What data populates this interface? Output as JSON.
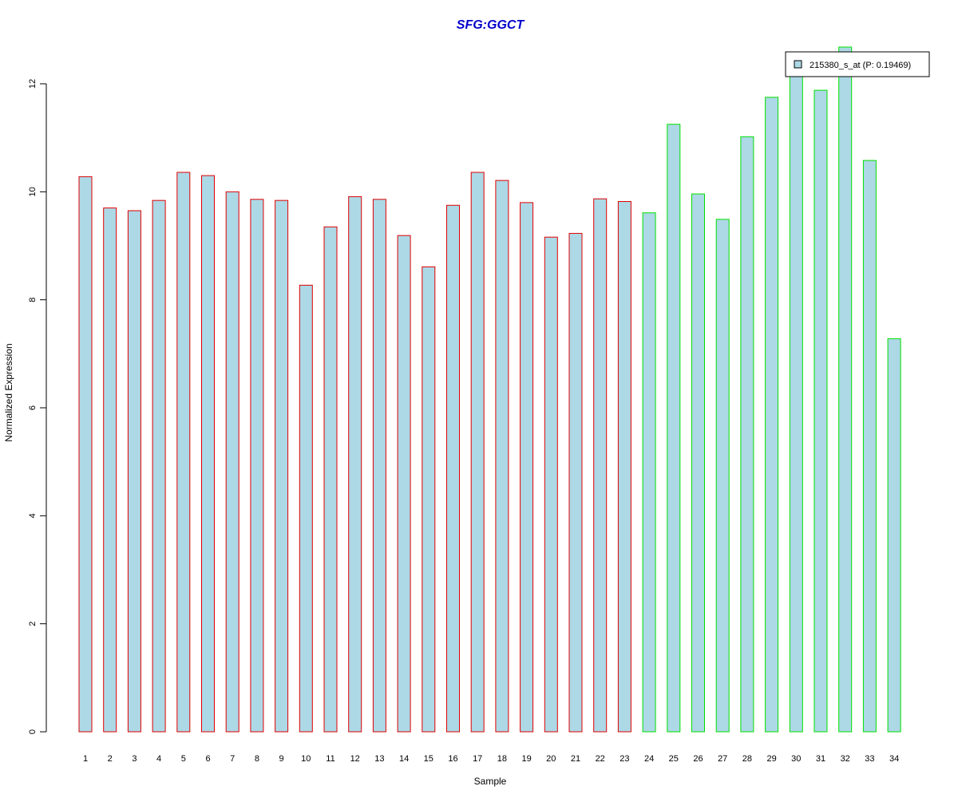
{
  "chart_data": {
    "type": "bar",
    "title": "SFG:GGCT",
    "xlabel": "Sample",
    "ylabel": "Normalized Expression",
    "ylim": [
      0,
      12
    ],
    "yticks": [
      0,
      2,
      4,
      6,
      8,
      10,
      12
    ],
    "categories": [
      "1",
      "2",
      "3",
      "4",
      "5",
      "6",
      "7",
      "8",
      "9",
      "10",
      "11",
      "12",
      "13",
      "14",
      "15",
      "16",
      "17",
      "18",
      "19",
      "20",
      "21",
      "22",
      "23",
      "24",
      "25",
      "26",
      "27",
      "28",
      "29",
      "30",
      "31",
      "32",
      "33",
      "34"
    ],
    "values": [
      10.28,
      9.7,
      9.65,
      9.84,
      10.36,
      10.3,
      10.0,
      9.86,
      9.84,
      8.27,
      9.35,
      9.91,
      9.86,
      9.19,
      8.61,
      9.75,
      10.36,
      10.21,
      9.8,
      9.16,
      9.23,
      9.87,
      9.82,
      9.61,
      11.25,
      9.96,
      9.49,
      11.02,
      11.75,
      12.25,
      11.88,
      12.68,
      10.58,
      7.28
    ],
    "groups": [
      "red",
      "red",
      "red",
      "red",
      "red",
      "red",
      "red",
      "red",
      "red",
      "red",
      "red",
      "red",
      "red",
      "red",
      "red",
      "red",
      "red",
      "red",
      "red",
      "red",
      "red",
      "red",
      "red",
      "green",
      "green",
      "green",
      "green",
      "green",
      "green",
      "green",
      "green",
      "green",
      "green",
      "green"
    ],
    "legend": {
      "position": "top-right",
      "entries": [
        {
          "label": "215380_s_at (P: 0.19469)",
          "color": "#add8e6"
        }
      ]
    },
    "grid": false
  },
  "colors": {
    "bar_fill": "#add8e6",
    "red_border": "#e00000",
    "green_border": "#00e000",
    "title": "#0000cc"
  }
}
